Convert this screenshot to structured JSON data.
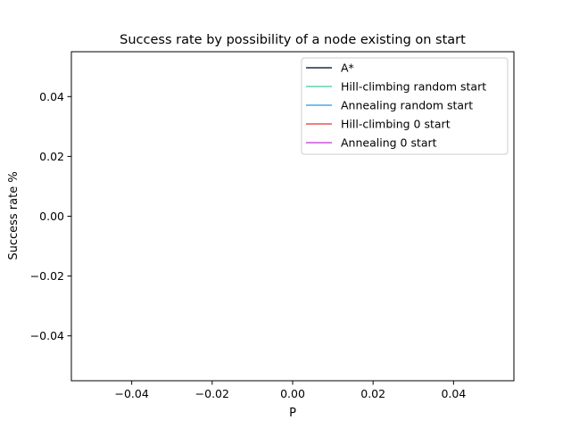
{
  "chart_data": {
    "type": "line",
    "title": "Success rate by possibility of a node existing on start",
    "xlabel": "P",
    "ylabel": "Success rate %",
    "xlim": [
      -0.055,
      0.055
    ],
    "ylim": [
      -0.055,
      0.055
    ],
    "xticks": [
      "−0.04",
      "−0.02",
      "0.00",
      "0.02",
      "0.04"
    ],
    "yticks": [
      "−0.04",
      "−0.02",
      "0.00",
      "0.02",
      "0.04"
    ],
    "grid": false,
    "legend_position": "top-right",
    "series": [
      {
        "name": "A*",
        "color": "#1f2a44",
        "x": [],
        "y": []
      },
      {
        "name": "Hill-climbing random start",
        "color": "#5fd3a8",
        "x": [],
        "y": []
      },
      {
        "name": "Annealing random start",
        "color": "#4aa8e8",
        "x": [],
        "y": []
      },
      {
        "name": "Hill-climbing 0 start",
        "color": "#f05050",
        "x": [],
        "y": []
      },
      {
        "name": "Annealing 0 start",
        "color": "#cc55dd",
        "x": [],
        "y": []
      }
    ]
  }
}
